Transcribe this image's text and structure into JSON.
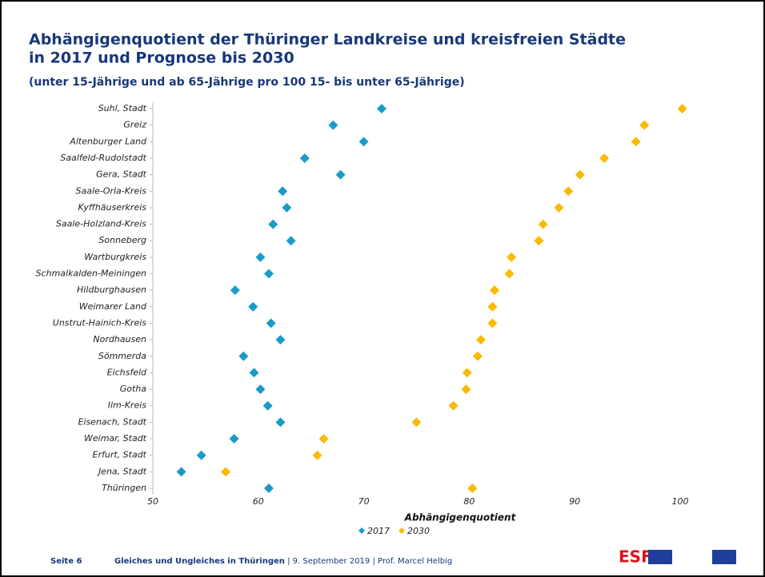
{
  "chart_data": {
    "type": "scatter",
    "title": "Abhängigenquotient der Thüringer Landkreise und kreisfreien Städte",
    "title_line2": "in 2017 und Prognose bis  2030",
    "subtitle": "(unter 15-Jährige und ab 65-Jährige pro 100 15- bis unter 65-Jährige)",
    "x_label": "Abhängigenquotient",
    "categories": [
      "Suhl, Stadt",
      "Greiz",
      "Altenburger Land",
      "Saalfeld-Rudolstadt",
      "Gera, Stadt",
      "Saale-Orla-Kreis",
      "Kyffhäuserkreis",
      "Saale-Holzland-Kreis",
      "Sonneberg",
      "Wartburgkreis",
      "Schmalkalden-Meiningen",
      "Hildburghausen",
      "Weimarer Land",
      "Unstrut-Hainich-Kreis",
      "Nordhausen",
      "Sömmerda",
      "Eichsfeld",
      "Gotha",
      "Ilm-Kreis",
      "Eisenach, Stadt",
      "Weimar, Stadt",
      "Erfurt, Stadt",
      "Jena, Stadt",
      "Thüringen"
    ],
    "series": [
      {
        "name": "2017",
        "color": "#1a9bc8",
        "values": [
          71.7,
          67.1,
          70.0,
          64.4,
          67.8,
          62.3,
          62.7,
          61.4,
          63.1,
          60.2,
          61.0,
          57.8,
          59.5,
          61.2,
          62.1,
          58.6,
          59.6,
          60.2,
          60.9,
          62.1,
          57.7,
          54.6,
          52.7,
          61.0
        ]
      },
      {
        "name": "2030",
        "color": "#fbb900",
        "values": [
          100.2,
          96.6,
          95.8,
          92.8,
          90.5,
          89.4,
          88.5,
          87.0,
          86.6,
          84.0,
          83.8,
          82.4,
          82.2,
          82.2,
          81.1,
          80.8,
          79.8,
          79.7,
          78.5,
          75.0,
          66.2,
          65.6,
          56.9,
          80.3
        ]
      }
    ],
    "xlim": [
      50,
      100
    ],
    "xticks": [
      50,
      60,
      70,
      80,
      90,
      100
    ],
    "legend": "bottom"
  },
  "footer": {
    "page": "Seite 6",
    "title": "Gleiches und Ungleiches in Thüringen",
    "details": " | 9. September 2019 | Prof. Marcel Helbig",
    "logo": "ESF"
  }
}
